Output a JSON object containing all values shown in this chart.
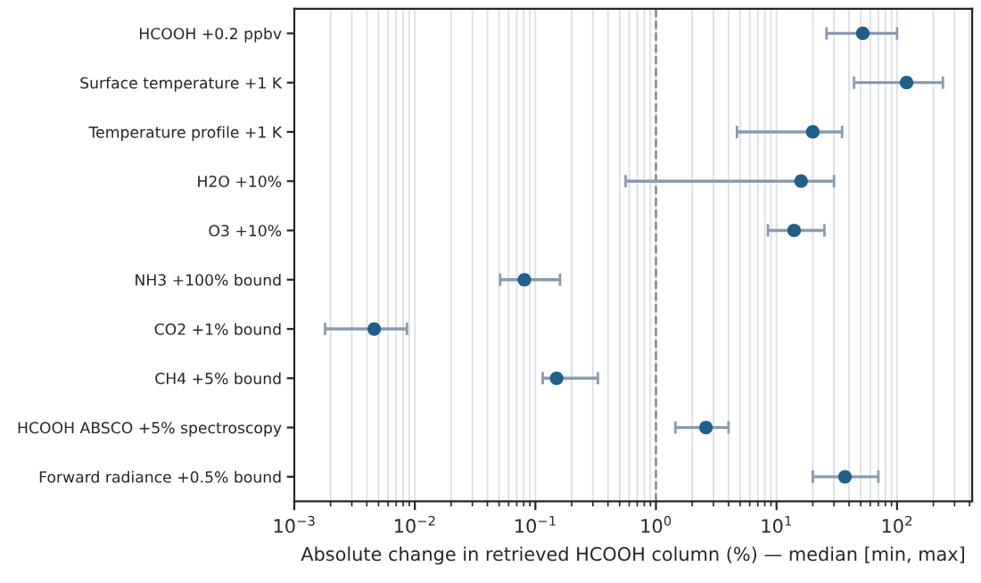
{
  "chart_data": {
    "type": "scatter",
    "orientation": "horizontal",
    "xlabel": "Absolute change in retrieved HCOOH column (%) — median [min, max]",
    "categories": [
      "HCOOH +0.2 ppbv",
      "Surface temperature +1 K",
      "Temperature profile +1 K",
      "H2O +10%",
      "O3 +10%",
      "NH3 +100% bound",
      "CO2 +1% bound",
      "CH4 +5% bound",
      "HCOOH ABSCO +5% spectroscopy",
      "Forward radiance +0.5% bound"
    ],
    "series": [
      {
        "color": "#1f5f8b",
        "values": [
          52,
          120,
          20,
          16,
          14,
          0.081,
          0.0046,
          0.15,
          2.6,
          37
        ],
        "errors": [
          [
            26,
            100
          ],
          [
            44,
            240
          ],
          [
            4.7,
            35
          ],
          [
            0.56,
            30
          ],
          [
            8.5,
            25
          ],
          [
            0.051,
            0.16
          ],
          [
            0.0018,
            0.0086
          ],
          [
            0.115,
            0.33
          ],
          [
            1.45,
            4
          ],
          [
            20,
            70
          ]
        ]
      }
    ],
    "log": "x",
    "xlim": [
      0.001,
      420
    ],
    "xticks": [
      {
        "value": 0.001,
        "label": "10$^{−3}$"
      },
      {
        "value": 0.01,
        "label": "10$^{−2}$"
      },
      {
        "value": 0.1,
        "label": "10$^{−1}$"
      },
      {
        "value": 1,
        "label": "10$^{0}$"
      },
      {
        "value": 10,
        "label": "10$^{1}$"
      },
      {
        "value": 100,
        "label": "10$^{2}$"
      }
    ],
    "grid": "x",
    "marker": "circle",
    "ref_lines": [
      {
        "axis": "x",
        "value": 1,
        "color": "#888888",
        "line_style": "dashed"
      }
    ]
  }
}
